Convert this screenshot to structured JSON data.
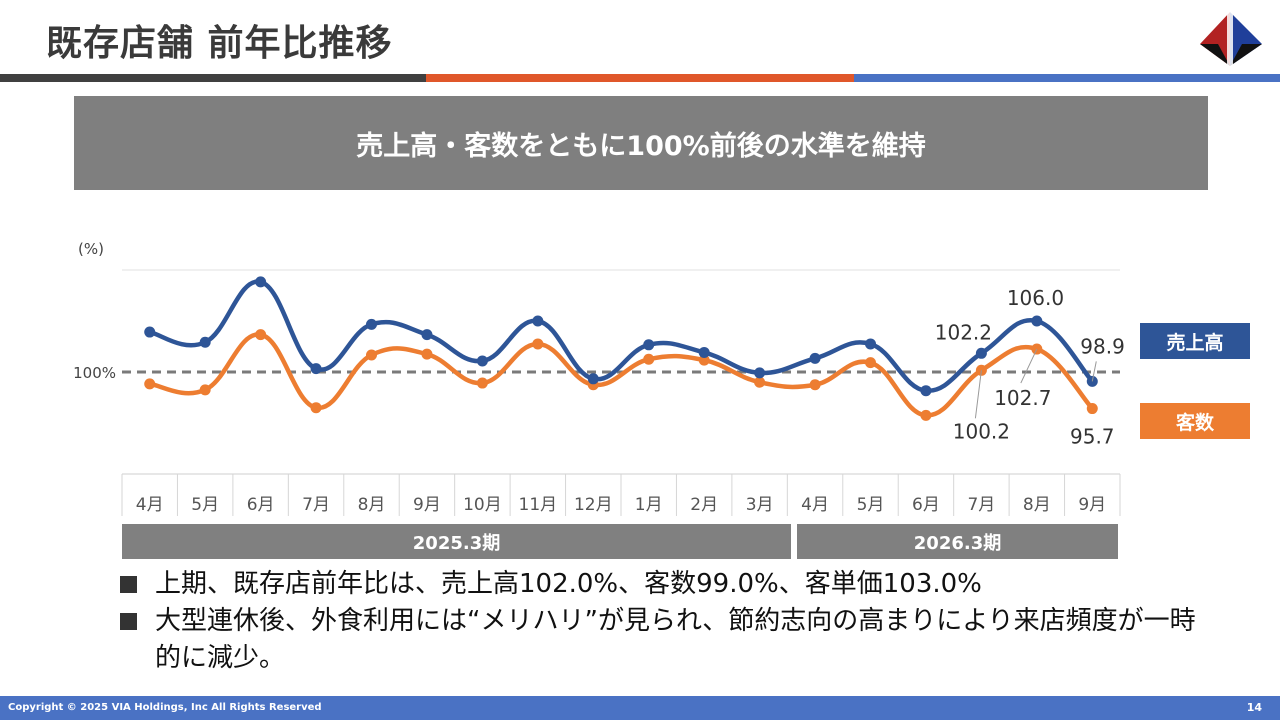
{
  "header": {
    "title": "既存店舗 前年比推移"
  },
  "banner": {
    "text": "売上高・客数をともに100%前後の水準を維持"
  },
  "colors": {
    "sales": "#2e5597",
    "customers": "#ed7d31",
    "rule_dark": "#404040",
    "rule_orange": "#e0572a",
    "rule_blue": "#4a72c4",
    "period_bar": "#808080"
  },
  "chart_data": {
    "type": "line",
    "ylabel": "(%)",
    "reference_label": "100%",
    "reference_value": 100,
    "ylim": [
      88,
      112
    ],
    "categories": [
      "4月",
      "5月",
      "6月",
      "7月",
      "8月",
      "9月",
      "10月",
      "11月",
      "12月",
      "1月",
      "2月",
      "3月",
      "4月",
      "5月",
      "6月",
      "7月",
      "8月",
      "9月"
    ],
    "series": [
      {
        "name": "売上高",
        "values": [
          104.7,
          103.5,
          110.6,
          100.4,
          105.6,
          104.4,
          101.3,
          106.0,
          99.2,
          103.2,
          102.3,
          99.9,
          101.6,
          103.3,
          97.8,
          102.2,
          106.0,
          98.9
        ]
      },
      {
        "name": "客数",
        "values": [
          98.6,
          97.9,
          104.4,
          95.8,
          102.0,
          102.1,
          98.7,
          103.3,
          98.5,
          101.5,
          101.4,
          98.8,
          98.5,
          101.1,
          94.9,
          100.2,
          102.7,
          95.7
        ]
      }
    ],
    "data_labels": [
      {
        "series": "売上高",
        "index": 15,
        "text": "102.2"
      },
      {
        "series": "売上高",
        "index": 16,
        "text": "106.0"
      },
      {
        "series": "売上高",
        "index": 17,
        "text": "98.9"
      },
      {
        "series": "客数",
        "index": 15,
        "text": "100.2"
      },
      {
        "series": "客数",
        "index": 16,
        "text": "102.7"
      },
      {
        "series": "客数",
        "index": 17,
        "text": "95.7"
      }
    ]
  },
  "legend": {
    "sales": "売上高",
    "customers": "客数"
  },
  "periods": [
    {
      "label": "2025.3期",
      "from": 0,
      "to": 11
    },
    {
      "label": "2026.3期",
      "from": 12,
      "to": 17
    }
  ],
  "bullets": [
    "上期、既存店前年比は、売上高102.0%、客数99.0%、客単価103.0%",
    "大型連休後、外食利用には“メリハリ”が見られ、節約志向の高まりにより来店頻度が一時的に減少。"
  ],
  "footer": {
    "copyright": "Copyright © 2025 VIA Holdings, Inc All Rights Reserved",
    "page": "14"
  }
}
